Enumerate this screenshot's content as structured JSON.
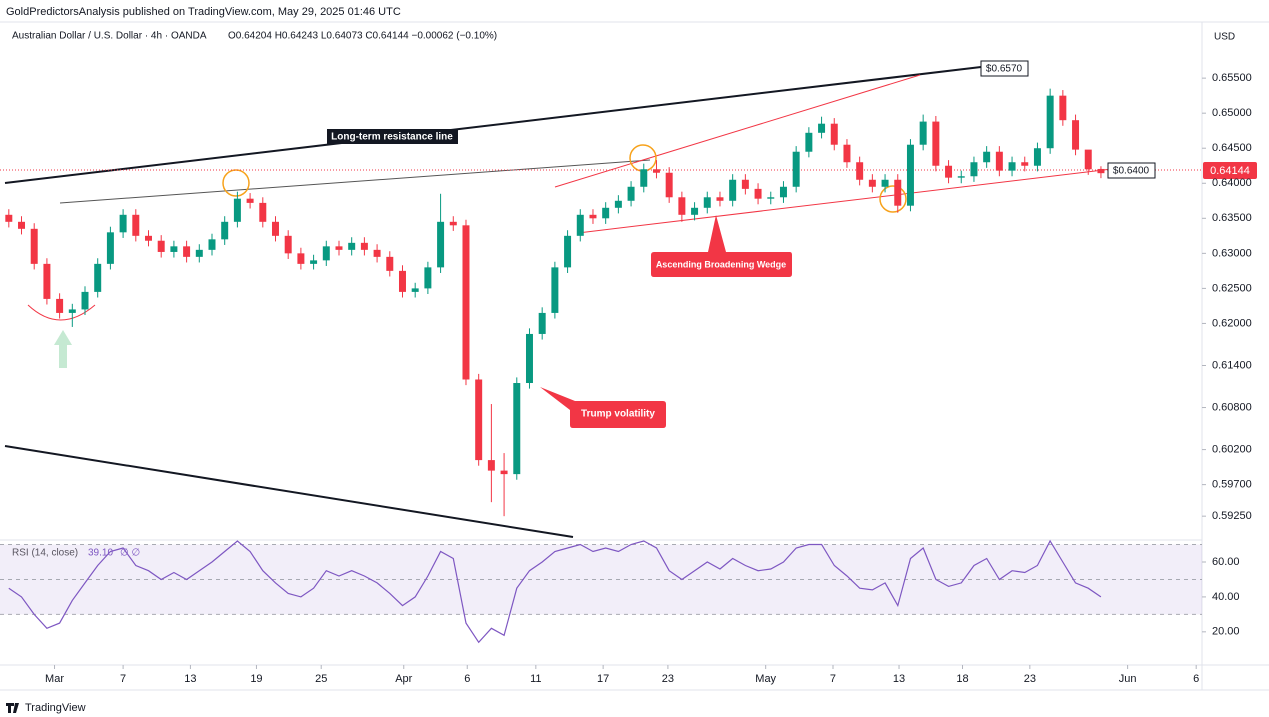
{
  "header": {
    "publisher": "GoldPredictorsAnalysis published on TradingView.com, May 29, 2025 01:46 UTC",
    "brand": "TradingView"
  },
  "chart_data": {
    "type": "candlestick",
    "symbol": "Australian Dollar / U.S. Dollar · 4h · OANDA",
    "ohlc_legend": "O0.64204 H0.64243 L0.64073 C0.64144 −0.00062 (−0.10%)",
    "currency": "USD",
    "up_color": "#089981",
    "down_color": "#f23645",
    "x": [
      0,
      1,
      2,
      3,
      4,
      5,
      6,
      7,
      8,
      9,
      10,
      11,
      12,
      13,
      14,
      15,
      16,
      17,
      18,
      19,
      20,
      21,
      22,
      23,
      24,
      25,
      26,
      27,
      28,
      29,
      30,
      31,
      32,
      33,
      34,
      35,
      36,
      37,
      38,
      39,
      40,
      41,
      42,
      43,
      44,
      45,
      46,
      47,
      48,
      49,
      50,
      51,
      52,
      53,
      54,
      55,
      56,
      57,
      58,
      59,
      60,
      61,
      62,
      63,
      64,
      65,
      66,
      67,
      68,
      69,
      70,
      71,
      72,
      73,
      74,
      75,
      76,
      77,
      78,
      79,
      80,
      81,
      82,
      83,
      84,
      85,
      86
    ],
    "open": [
      0.6355,
      0.6345,
      0.6335,
      0.6285,
      0.6235,
      0.6215,
      0.622,
      0.6245,
      0.6285,
      0.633,
      0.6355,
      0.6325,
      0.6318,
      0.6302,
      0.631,
      0.6295,
      0.6305,
      0.632,
      0.6345,
      0.6378,
      0.6372,
      0.6345,
      0.6325,
      0.63,
      0.6285,
      0.629,
      0.631,
      0.6305,
      0.6315,
      0.6305,
      0.6295,
      0.6275,
      0.6245,
      0.625,
      0.628,
      0.6345,
      0.634,
      0.612,
      0.6005,
      0.599,
      0.5985,
      0.6115,
      0.6185,
      0.6215,
      0.628,
      0.6325,
      0.6355,
      0.635,
      0.6365,
      0.6375,
      0.6395,
      0.642,
      0.6415,
      0.638,
      0.6355,
      0.6365,
      0.638,
      0.6375,
      0.6405,
      0.6392,
      0.6378,
      0.638,
      0.6395,
      0.6445,
      0.6472,
      0.6485,
      0.6455,
      0.643,
      0.6405,
      0.6395,
      0.6405,
      0.6368,
      0.6455,
      0.6488,
      0.6425,
      0.6408,
      0.641,
      0.643,
      0.6445,
      0.6418,
      0.643,
      0.6425,
      0.645,
      0.6525,
      0.649,
      0.6448,
      0.64204
    ],
    "high": [
      0.6363,
      0.6353,
      0.6343,
      0.6293,
      0.6243,
      0.6228,
      0.6253,
      0.6293,
      0.6338,
      0.6363,
      0.6363,
      0.6333,
      0.6326,
      0.6318,
      0.6318,
      0.6313,
      0.6328,
      0.6353,
      0.6388,
      0.6386,
      0.638,
      0.6353,
      0.6333,
      0.6308,
      0.6298,
      0.6318,
      0.6318,
      0.6323,
      0.6323,
      0.6313,
      0.6303,
      0.6283,
      0.6258,
      0.6288,
      0.6385,
      0.6353,
      0.6348,
      0.6128,
      0.6085,
      0.6015,
      0.6123,
      0.6193,
      0.6223,
      0.6288,
      0.6333,
      0.6363,
      0.6363,
      0.6373,
      0.6383,
      0.6403,
      0.6428,
      0.6433,
      0.6423,
      0.6388,
      0.6373,
      0.6388,
      0.6388,
      0.6413,
      0.6413,
      0.64,
      0.6388,
      0.6403,
      0.6453,
      0.648,
      0.6495,
      0.6493,
      0.6463,
      0.6438,
      0.6413,
      0.6413,
      0.6413,
      0.6463,
      0.6498,
      0.6496,
      0.6433,
      0.6418,
      0.6438,
      0.6453,
      0.6453,
      0.6438,
      0.6438,
      0.6458,
      0.6535,
      0.6533,
      0.6498,
      0.6443,
      0.64243
    ],
    "low": [
      0.6337,
      0.6327,
      0.6277,
      0.6227,
      0.6207,
      0.6195,
      0.6212,
      0.6237,
      0.6277,
      0.6322,
      0.6317,
      0.631,
      0.6294,
      0.6294,
      0.6287,
      0.6287,
      0.6297,
      0.6312,
      0.6337,
      0.6364,
      0.6337,
      0.6317,
      0.6292,
      0.6277,
      0.6277,
      0.6282,
      0.6297,
      0.6297,
      0.6297,
      0.6287,
      0.6267,
      0.6237,
      0.6237,
      0.6242,
      0.6272,
      0.6332,
      0.6112,
      0.5997,
      0.5945,
      0.5925,
      0.5977,
      0.6107,
      0.6177,
      0.6207,
      0.6272,
      0.6317,
      0.6342,
      0.6342,
      0.6357,
      0.6367,
      0.6387,
      0.6407,
      0.6372,
      0.6345,
      0.6347,
      0.6357,
      0.6367,
      0.6367,
      0.6384,
      0.637,
      0.637,
      0.6372,
      0.6387,
      0.6437,
      0.6464,
      0.6447,
      0.6422,
      0.6397,
      0.6387,
      0.6387,
      0.6358,
      0.636,
      0.6447,
      0.6417,
      0.64,
      0.64,
      0.6402,
      0.6422,
      0.641,
      0.641,
      0.6417,
      0.6417,
      0.6442,
      0.6482,
      0.644,
      0.6412,
      0.64073
    ],
    "close": [
      0.6345,
      0.6335,
      0.6285,
      0.6235,
      0.6215,
      0.622,
      0.6245,
      0.6285,
      0.633,
      0.6355,
      0.6325,
      0.6318,
      0.6302,
      0.631,
      0.6295,
      0.6305,
      0.632,
      0.6345,
      0.6378,
      0.6372,
      0.6345,
      0.6325,
      0.63,
      0.6285,
      0.629,
      0.631,
      0.6305,
      0.6315,
      0.6305,
      0.6295,
      0.6275,
      0.6245,
      0.625,
      0.628,
      0.6345,
      0.634,
      0.612,
      0.6005,
      0.599,
      0.5985,
      0.6115,
      0.6185,
      0.6215,
      0.628,
      0.6325,
      0.6355,
      0.635,
      0.6365,
      0.6375,
      0.6395,
      0.642,
      0.6415,
      0.638,
      0.6355,
      0.6365,
      0.638,
      0.6375,
      0.6405,
      0.6392,
      0.6378,
      0.638,
      0.6395,
      0.6445,
      0.6472,
      0.6485,
      0.6455,
      0.643,
      0.6405,
      0.6395,
      0.6405,
      0.6368,
      0.6455,
      0.6488,
      0.6425,
      0.6408,
      0.641,
      0.643,
      0.6445,
      0.6418,
      0.643,
      0.6425,
      0.645,
      0.6525,
      0.649,
      0.6448,
      0.642,
      0.64144
    ],
    "xlim": [
      -0.3,
      93.8
    ],
    "xticks": [
      {
        "value": 3.6,
        "label": "Mar"
      },
      {
        "value": 9.0,
        "label": "7"
      },
      {
        "value": 14.3,
        "label": "13"
      },
      {
        "value": 19.5,
        "label": "19"
      },
      {
        "value": 24.6,
        "label": "25"
      },
      {
        "value": 31.1,
        "label": "Apr"
      },
      {
        "value": 36.1,
        "label": "6"
      },
      {
        "value": 41.5,
        "label": "11"
      },
      {
        "value": 46.8,
        "label": "17"
      },
      {
        "value": 51.9,
        "label": "23"
      },
      {
        "value": 59.6,
        "label": "May"
      },
      {
        "value": 64.9,
        "label": "7"
      },
      {
        "value": 70.1,
        "label": "13"
      },
      {
        "value": 75.1,
        "label": "18"
      },
      {
        "value": 80.4,
        "label": "23"
      },
      {
        "value": 88.1,
        "label": "Jun"
      },
      {
        "value": 93.5,
        "label": "6"
      }
    ],
    "ylim": [
      0.5891,
      0.6593
    ],
    "yticks": [
      {
        "value": 0.655,
        "label": "0.65500"
      },
      {
        "value": 0.65,
        "label": "0.65000"
      },
      {
        "value": 0.645,
        "label": "0.64500"
      },
      {
        "value": 0.64,
        "label": "0.64000"
      },
      {
        "value": 0.635,
        "label": "0.63500"
      },
      {
        "value": 0.63,
        "label": "0.63000"
      },
      {
        "value": 0.625,
        "label": "0.62500"
      },
      {
        "value": 0.62,
        "label": "0.62000"
      },
      {
        "value": 0.614,
        "label": "0.61400"
      },
      {
        "value": 0.608,
        "label": "0.60800"
      },
      {
        "value": 0.602,
        "label": "0.60200"
      },
      {
        "value": 0.597,
        "label": "0.59700"
      },
      {
        "value": 0.5925,
        "label": "0.59250"
      }
    ],
    "annotations": {
      "resistance": "Long-term resistance line",
      "level_top": "$0.6570",
      "level_mid": "$0.6400",
      "wedge": "Ascending Broadening Wedge",
      "volatility": "Trump volatility"
    },
    "rsi": {
      "name": "RSI (14, close)",
      "value_label": "39.10",
      "extra": "∅ ∅",
      "color": "#7e57c2",
      "values": [
        45,
        40,
        30,
        22,
        25,
        38,
        48,
        58,
        66,
        68,
        58,
        55,
        50,
        54,
        50,
        55,
        60,
        66,
        72,
        66,
        55,
        48,
        42,
        40,
        45,
        55,
        52,
        55,
        52,
        48,
        42,
        35,
        40,
        52,
        66,
        62,
        25,
        14,
        22,
        18,
        45,
        55,
        60,
        66,
        68,
        70,
        66,
        68,
        66,
        70,
        72,
        68,
        55,
        50,
        55,
        60,
        56,
        62,
        58,
        55,
        56,
        60,
        68,
        70,
        70,
        58,
        52,
        45,
        44,
        48,
        35,
        62,
        68,
        50,
        46,
        48,
        58,
        62,
        50,
        55,
        54,
        58,
        72,
        60,
        48,
        45,
        40
      ],
      "levels": [
        70,
        50,
        30
      ],
      "ylim": [
        1,
        72.6
      ],
      "yticks": [
        {
          "value": 60,
          "label": "60.00"
        },
        {
          "value": 40,
          "label": "40.00"
        },
        {
          "value": 20,
          "label": "20.00"
        }
      ]
    }
  }
}
